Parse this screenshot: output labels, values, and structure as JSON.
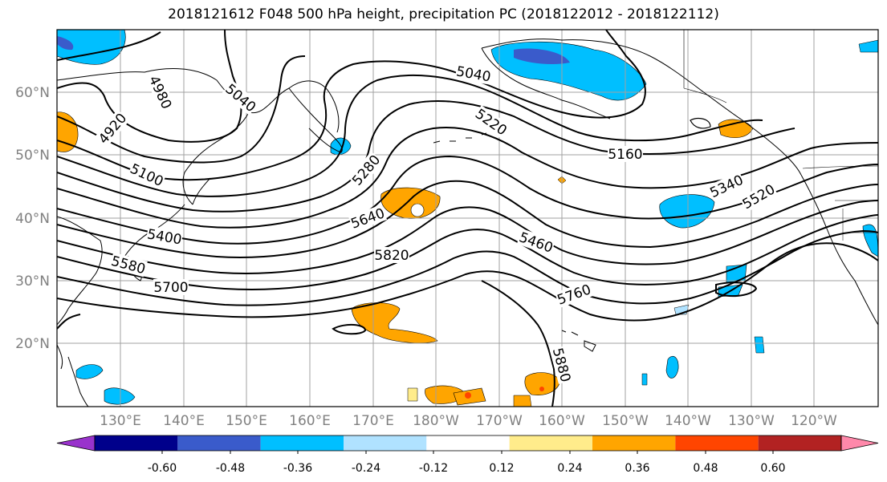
{
  "title": "2018121612 F048 500 hPa height, precipitation PC (2018122012 - 2018122112)",
  "lat_labels": [
    "60°N",
    "50°N",
    "40°N",
    "30°N",
    "20°N"
  ],
  "lon_labels": [
    "130°E",
    "140°E",
    "150°E",
    "160°E",
    "170°E",
    "180°W",
    "170°W",
    "160°W",
    "150°W",
    "140°W",
    "130°W",
    "120°W"
  ],
  "contour_labels": [
    "4920",
    "4980",
    "5040",
    "5040",
    "5100",
    "5160",
    "5220",
    "5280",
    "5340",
    "5400",
    "5460",
    "5520",
    "5580",
    "5640",
    "5700",
    "5760",
    "5820",
    "5880"
  ],
  "colorbar": {
    "colors": [
      "#9932CC",
      "#00008B",
      "#3A5BCB",
      "#00BFFF",
      "#B0E2FF",
      "#FFFFFF",
      "#FFEC8B",
      "#FFA500",
      "#FF4500",
      "#B22222",
      "#FF88AA"
    ],
    "tick_labels": [
      "-0.60",
      "-0.48",
      "-0.36",
      "-0.24",
      "-0.12",
      "0.12",
      "0.24",
      "0.36",
      "0.48",
      "0.60"
    ]
  },
  "colors": {
    "contour": "#000000",
    "grid": "#a0a0a0",
    "coast": "#000000",
    "axis_label": "#808080"
  }
}
